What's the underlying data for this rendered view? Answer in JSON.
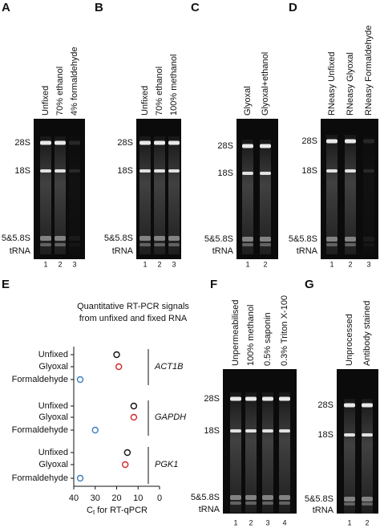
{
  "panels": [
    {
      "letter": "A",
      "lanes": [
        "Unfixed",
        "70% ethanol",
        "4% formaldehyde"
      ],
      "bands": [
        "28S",
        "18S",
        "5&5.8S",
        "tRNA"
      ],
      "lane_numbers": [
        "1",
        "2",
        "3"
      ]
    },
    {
      "letter": "B",
      "lanes": [
        "Unfixed",
        "70% ethanol",
        "100% methanol"
      ],
      "bands": [
        "28S",
        "18S",
        "5&5.8S",
        "tRNA"
      ],
      "lane_numbers": [
        "1",
        "2",
        "3"
      ]
    },
    {
      "letter": "C",
      "lanes": [
        "Glyoxal",
        "Glyoxal+ethanol"
      ],
      "bands": [
        "28S",
        "18S",
        "5&5.8S",
        "tRNA"
      ],
      "lane_numbers": [
        "1",
        "2"
      ]
    },
    {
      "letter": "D",
      "lanes": [
        "RNeasy Unfixed",
        "RNeasy Glyoxal",
        "RNeasy Formaldehyde"
      ],
      "bands": [
        "28S",
        "18S",
        "5&5.8S",
        "tRNA"
      ],
      "lane_numbers": [
        "1",
        "2",
        "3"
      ]
    },
    {
      "letter": "E",
      "plot": {
        "type": "dot",
        "title": [
          "Quantitative RT-PCR signals",
          "from unfixed and fixed RNA"
        ],
        "xlabel": {
          "main": "C",
          "sub": "t",
          "rest": " for RT-qPCR"
        },
        "xlim": [
          40,
          0
        ],
        "xticks": [
          40,
          30,
          20,
          10,
          0
        ],
        "colors": [
          "#111111",
          "#d62728",
          "#3a7fc1"
        ],
        "groups": [
          {
            "gene": "ACT1B",
            "labels": [
              "Unfixed",
              "Glyoxal",
              "Formaldehyde"
            ],
            "values": [
              20,
              19,
              37
            ]
          },
          {
            "gene": "GAPDH",
            "labels": [
              "Unfixed",
              "Glyoxal",
              "Formaldehyde"
            ],
            "values": [
              12,
              12,
              30
            ]
          },
          {
            "gene": "PGK1",
            "labels": [
              "Unfixed",
              "Glyoxal",
              "Formaldehyde"
            ],
            "values": [
              15,
              16,
              37
            ]
          }
        ]
      }
    },
    {
      "letter": "F",
      "lanes": [
        "Unpermeabilised",
        "100% methanol",
        "0.5% saponin",
        "0.3% Triton X-100"
      ],
      "bands": [
        "28S",
        "18S",
        "5&5.8S",
        "tRNA"
      ],
      "lane_numbers": [
        "1",
        "2",
        "3",
        "4"
      ]
    },
    {
      "letter": "G",
      "lanes": [
        "Unprocessed",
        "Antibody stained"
      ],
      "bands": [
        "28S",
        "18S",
        "5&5.8S",
        "tRNA"
      ],
      "lane_numbers": [
        "1",
        "2"
      ]
    }
  ]
}
